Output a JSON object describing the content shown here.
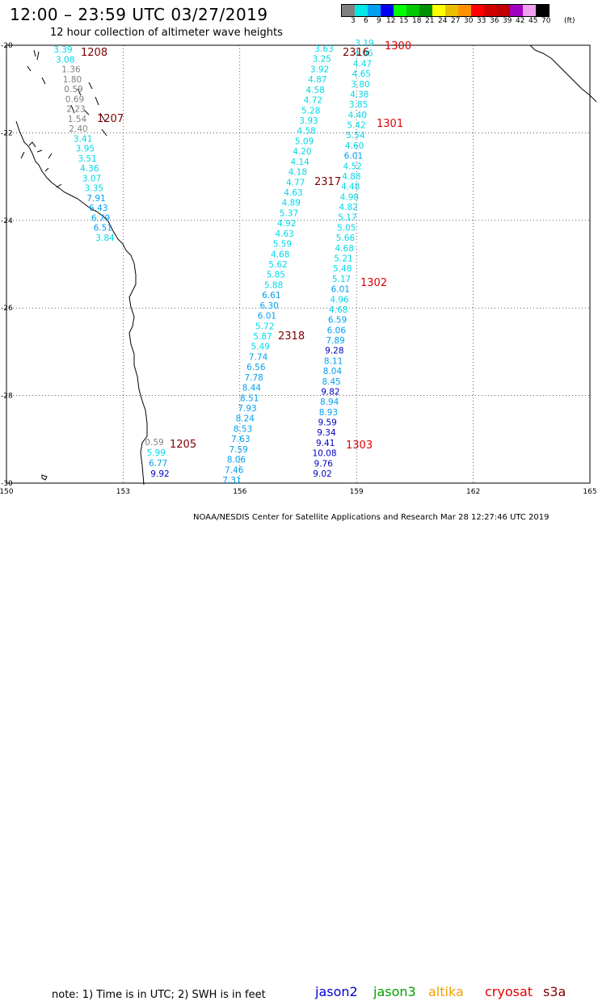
{
  "header": {
    "title": "12:00 – 23:59 UTC 03/27/2019",
    "subtitle": "12 hour collection of altimeter wave heights"
  },
  "colorbar": {
    "unit": "(ft)",
    "swatches": [
      "#808080",
      "#00e8e8",
      "#00a0f0",
      "#0000f0",
      "#00ff00",
      "#00c800",
      "#009000",
      "#ffff00",
      "#e8c000",
      "#ff9000",
      "#ff0000",
      "#d00000",
      "#c00000",
      "#a000c0",
      "#f0a0f0",
      "#000000"
    ],
    "labels": [
      "3",
      "6",
      "9",
      "12",
      "15",
      "18",
      "21",
      "24",
      "27",
      "30",
      "33",
      "36",
      "39",
      "42",
      "45",
      "70"
    ]
  },
  "axes": {
    "lat_labels": [
      "-20",
      "-22",
      "-24",
      "-26",
      "-28",
      "-30"
    ],
    "lon_labels": [
      "150",
      "153",
      "156",
      "159",
      "162",
      "165"
    ]
  },
  "colors": {
    "c3": "#808080",
    "c6": "#00d8e8",
    "c9": "#00a0f0",
    "c12": "#0000c0",
    "time": "#800000",
    "time_red": "#e00000"
  },
  "tracks": [
    {
      "name": "track-1208",
      "values": [
        "3.39",
        "3.08",
        "1.36",
        "1.80",
        "0.59",
        "0.69",
        "2.23",
        "1.54",
        "2.40",
        "3.41",
        "3.95",
        "3.51",
        "4.36",
        "3.07",
        "3.35",
        "7.91",
        "6.43",
        "6.79",
        "6.51",
        "3.84"
      ]
    },
    {
      "name": "track-2316",
      "values": [
        "3.63",
        "3.25",
        "3.92",
        "4.87",
        "4.58",
        "4.72",
        "5.28",
        "3.93",
        "4.58",
        "5.09",
        "4.20",
        "4.14",
        "4.18",
        "4.77",
        "4.63",
        "4.89",
        "5.37",
        "4.92",
        "4.63",
        "5.59",
        "4.68",
        "5.62",
        "5.85",
        "5.88",
        "6.61",
        "6.30",
        "6.01",
        "5.72",
        "5.87",
        "5.49",
        "7.74",
        "6.56",
        "7.78",
        "8.44",
        "8.51",
        "7.93",
        "8.24",
        "8.53",
        "7.63",
        "7.59",
        "8.06",
        "7.46",
        "7.31"
      ]
    },
    {
      "name": "track-1300",
      "values": [
        "3.19",
        "4.06",
        "4.47",
        "4.65",
        "3.80",
        "4.38",
        "3.85",
        "4.40",
        "5.42",
        "5.54",
        "4.60",
        "6.01",
        "4.52",
        "4.88",
        "4.48",
        "4.98",
        "4.82",
        "5.17",
        "5.05",
        "5.66",
        "4.68",
        "5.21",
        "5.48",
        "5.17",
        "6.01",
        "4.96",
        "4.68",
        "6.59",
        "6.06",
        "7.89",
        "9.28",
        "8.11",
        "8.04",
        "8.45",
        "9.82",
        "8.94",
        "8.93",
        "9.59",
        "9.34",
        "9.41",
        "10.08",
        "9.76",
        "9.02"
      ]
    },
    {
      "name": "track-1205",
      "values": [
        "0.59",
        "5.99",
        "6.77",
        "9.92"
      ]
    }
  ],
  "time_labels": [
    {
      "name": "time-1208",
      "text": "1208",
      "color": "#800000"
    },
    {
      "name": "time-1207",
      "text": "1207",
      "color": "#800000"
    },
    {
      "name": "time-2316",
      "text": "2316",
      "color": "#800000"
    },
    {
      "name": "time-1300",
      "text": "1300",
      "color": "#e00000"
    },
    {
      "name": "time-1301",
      "text": "1301",
      "color": "#e00000"
    },
    {
      "name": "time-2317",
      "text": "2317",
      "color": "#800000"
    },
    {
      "name": "time-1302",
      "text": "1302",
      "color": "#e00000"
    },
    {
      "name": "time-2318",
      "text": "2318",
      "color": "#800000"
    },
    {
      "name": "time-1205",
      "text": "1205",
      "color": "#800000"
    },
    {
      "name": "time-1303",
      "text": "1303",
      "color": "#e00000"
    }
  ],
  "footer": {
    "note": "note: 1) Time is in UTC; 2) SWH is in feet",
    "satellites": [
      {
        "name": "jason2",
        "color": "#0000d0"
      },
      {
        "name": "jason3",
        "color": "#00a000"
      },
      {
        "name": "altika",
        "color": "#f0a000"
      },
      {
        "name": "cryosat",
        "color": "#e00000"
      },
      {
        "name": "s3a",
        "color": "#800000"
      }
    ],
    "credit": "NOAA/NESDIS Center for Satellite Applications and Research    Mar 28 12:27:46 UTC 2019"
  }
}
